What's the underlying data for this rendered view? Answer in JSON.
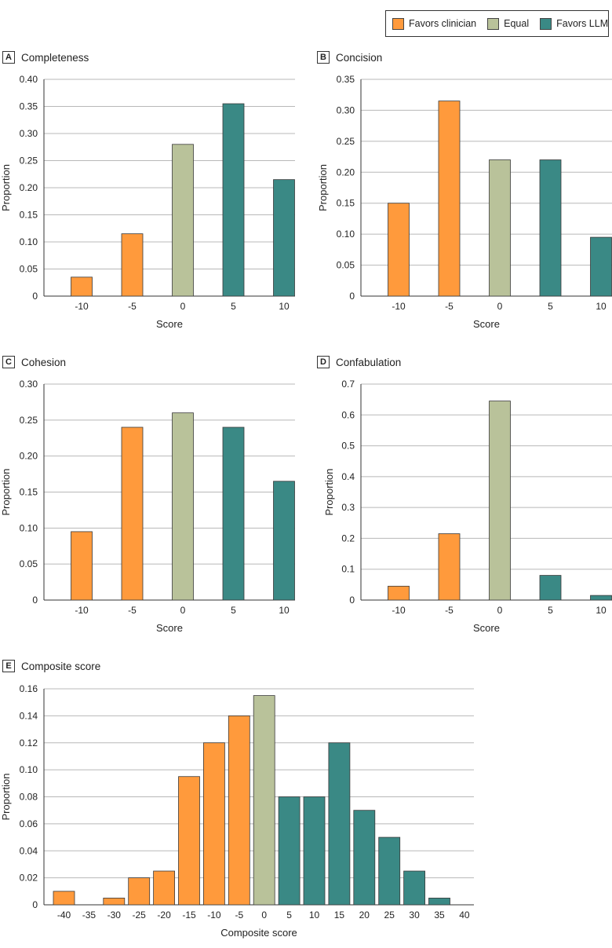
{
  "legend": {
    "items": [
      {
        "label": "Favors clinician",
        "color": "#FF9A3C"
      },
      {
        "label": "Equal",
        "color": "#B9C29A"
      },
      {
        "label": "Favors LLM",
        "color": "#3A8985"
      }
    ]
  },
  "colors": {
    "clinician": "#FF9A3C",
    "equal": "#B9C29A",
    "llm": "#3A8985",
    "grid": "#b8b8b8",
    "bar_edge": "#3a3a3a"
  },
  "panels": [
    {
      "letter": "A",
      "title": "Completeness"
    },
    {
      "letter": "B",
      "title": "Concision"
    },
    {
      "letter": "C",
      "title": "Cohesion"
    },
    {
      "letter": "D",
      "title": "Confabulation"
    },
    {
      "letter": "E",
      "title": "Composite score"
    }
  ],
  "chart_data": [
    {
      "type": "bar",
      "panel": "A",
      "title": "Completeness",
      "xlabel": "Score",
      "ylabel": "Proportion",
      "categories": [
        "-10",
        "-5",
        "0",
        "5",
        "10"
      ],
      "values": [
        0.035,
        0.115,
        0.28,
        0.355,
        0.215
      ],
      "groups": [
        "clinician",
        "clinician",
        "equal",
        "llm",
        "llm"
      ],
      "ylim": [
        0,
        0.4
      ],
      "yticks": [
        "0",
        "0.05",
        "0.10",
        "0.15",
        "0.20",
        "0.25",
        "0.30",
        "0.35",
        "0.40"
      ],
      "grid": true
    },
    {
      "type": "bar",
      "panel": "B",
      "title": "Concision",
      "xlabel": "Score",
      "ylabel": "Proportion",
      "categories": [
        "-10",
        "-5",
        "0",
        "5",
        "10"
      ],
      "values": [
        0.15,
        0.315,
        0.22,
        0.22,
        0.095
      ],
      "groups": [
        "clinician",
        "clinician",
        "equal",
        "llm",
        "llm"
      ],
      "ylim": [
        0,
        0.35
      ],
      "yticks": [
        "0",
        "0.05",
        "0.10",
        "0.15",
        "0.20",
        "0.25",
        "0.30",
        "0.35"
      ],
      "grid": true
    },
    {
      "type": "bar",
      "panel": "C",
      "title": "Cohesion",
      "xlabel": "Score",
      "ylabel": "Proportion",
      "categories": [
        "-10",
        "-5",
        "0",
        "5",
        "10"
      ],
      "values": [
        0.095,
        0.24,
        0.26,
        0.24,
        0.165
      ],
      "groups": [
        "clinician",
        "clinician",
        "equal",
        "llm",
        "llm"
      ],
      "ylim": [
        0,
        0.3
      ],
      "yticks": [
        "0",
        "0.05",
        "0.10",
        "0.15",
        "0.20",
        "0.25",
        "0.30"
      ],
      "grid": true
    },
    {
      "type": "bar",
      "panel": "D",
      "title": "Confabulation",
      "xlabel": "Score",
      "ylabel": "Proportion",
      "categories": [
        "-10",
        "-5",
        "0",
        "5",
        "10"
      ],
      "values": [
        0.045,
        0.215,
        0.645,
        0.08,
        0.015
      ],
      "groups": [
        "clinician",
        "clinician",
        "equal",
        "llm",
        "llm"
      ],
      "ylim": [
        0,
        0.7
      ],
      "yticks": [
        "0",
        "0.1",
        "0.2",
        "0.3",
        "0.4",
        "0.5",
        "0.6",
        "0.7"
      ],
      "grid": true
    },
    {
      "type": "bar",
      "panel": "E",
      "title": "Composite score",
      "xlabel": "Composite score",
      "ylabel": "Proportion",
      "categories": [
        "-40",
        "-35",
        "-30",
        "-25",
        "-20",
        "-15",
        "-10",
        "-5",
        "0",
        "5",
        "10",
        "15",
        "20",
        "25",
        "30",
        "35",
        "40"
      ],
      "values": [
        0.01,
        0,
        0.005,
        0.02,
        0.025,
        0.095,
        0.12,
        0.14,
        0.155,
        0.08,
        0.08,
        0.12,
        0.07,
        0.05,
        0.025,
        0.005,
        0
      ],
      "groups": [
        "clinician",
        "clinician",
        "clinician",
        "clinician",
        "clinician",
        "clinician",
        "clinician",
        "clinician",
        "equal",
        "llm",
        "llm",
        "llm",
        "llm",
        "llm",
        "llm",
        "llm",
        "llm"
      ],
      "ylim": [
        0,
        0.16
      ],
      "yticks": [
        "0",
        "0.02",
        "0.04",
        "0.06",
        "0.08",
        "0.10",
        "0.12",
        "0.14",
        "0.16"
      ],
      "grid": true
    }
  ]
}
